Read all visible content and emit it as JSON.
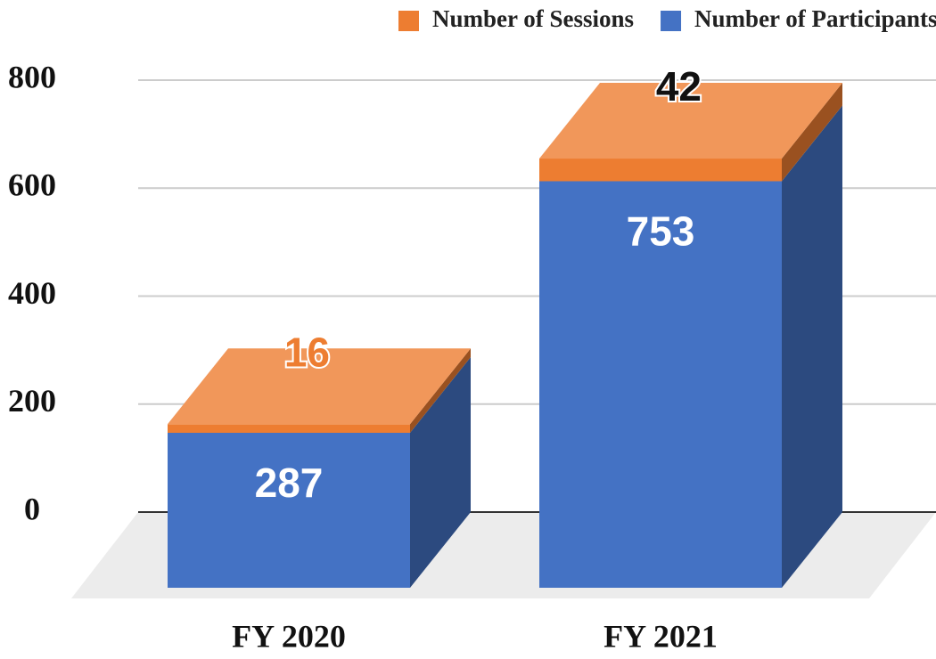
{
  "chart_data": {
    "type": "bar",
    "stacked": true,
    "three_d": true,
    "categories": [
      "FY 2020",
      "FY 2021"
    ],
    "series": [
      {
        "name": "Number of Sessions",
        "color": "#ed7d31",
        "values": [
          16,
          42
        ]
      },
      {
        "name": "Number of Participants",
        "color": "#4472c4",
        "values": [
          287,
          753
        ]
      }
    ],
    "ylim": [
      0,
      800
    ],
    "yticks": [
      0,
      200,
      400,
      600,
      800
    ],
    "grid": true,
    "legend": "top-right"
  }
}
